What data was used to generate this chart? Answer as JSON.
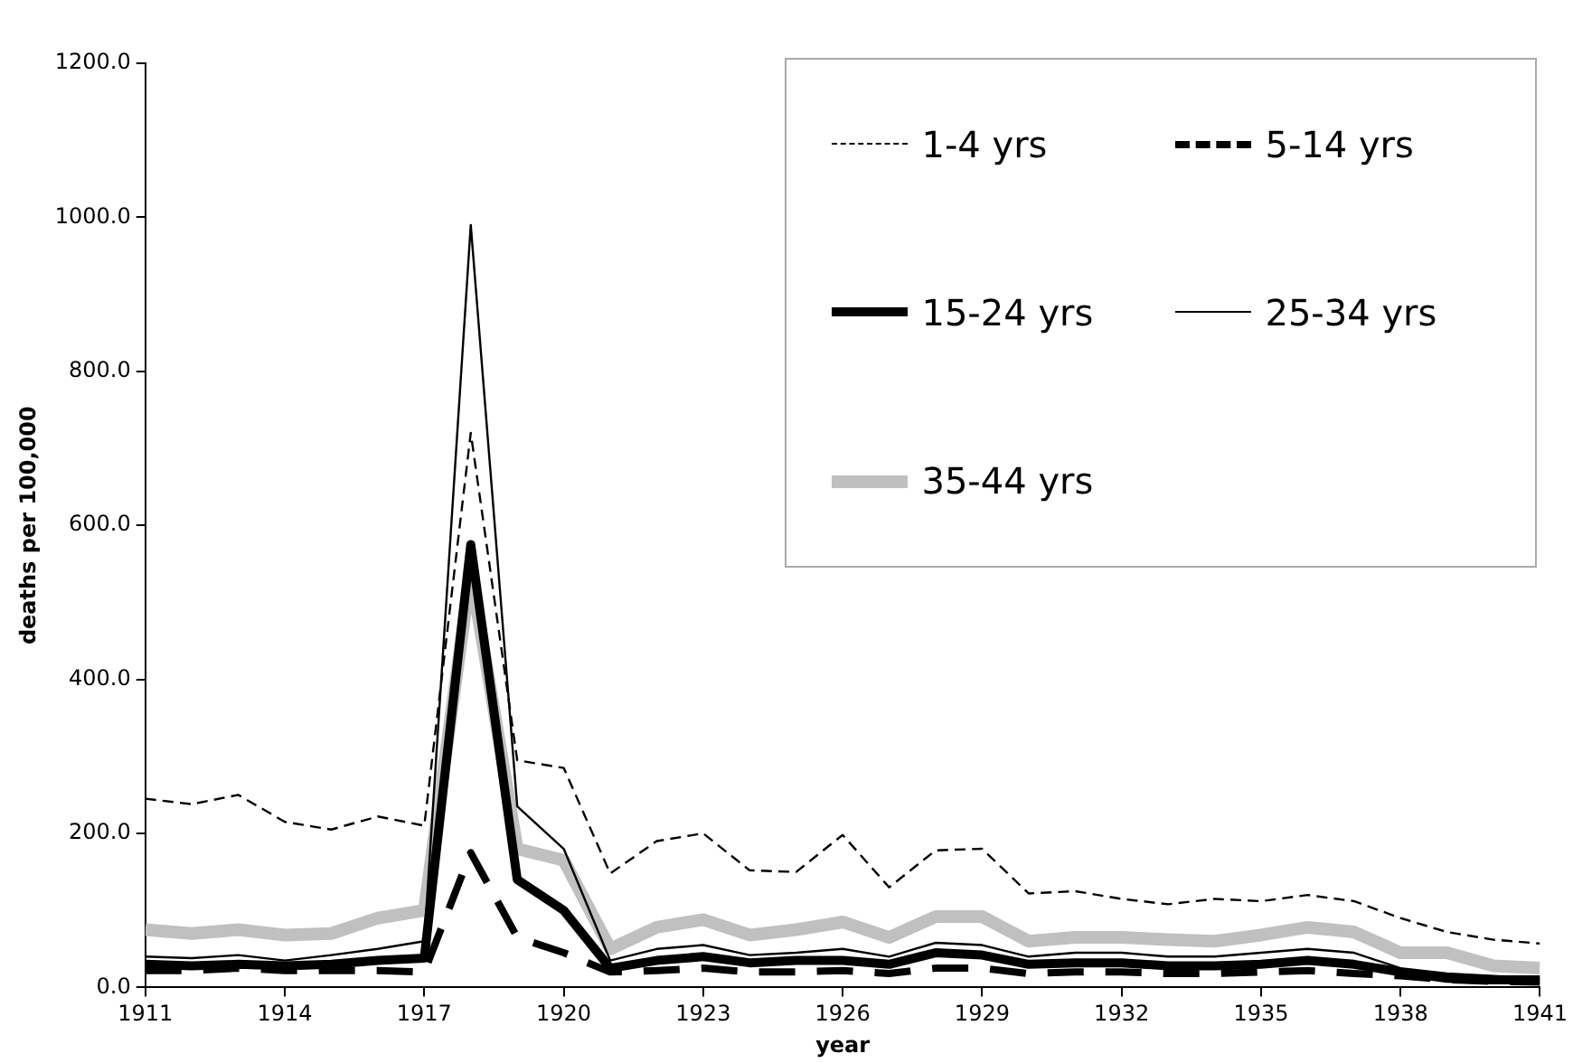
{
  "chart_data": {
    "type": "line",
    "xlabel": "year",
    "ylabel": "deaths per 100,000",
    "x": [
      1911,
      1912,
      1913,
      1914,
      1915,
      1916,
      1917,
      1918,
      1919,
      1920,
      1921,
      1922,
      1923,
      1924,
      1925,
      1926,
      1927,
      1928,
      1929,
      1930,
      1931,
      1932,
      1933,
      1934,
      1935,
      1936,
      1937,
      1938,
      1939,
      1940,
      1941
    ],
    "xlim": [
      1911,
      1941
    ],
    "xticks": [
      1911,
      1914,
      1917,
      1920,
      1923,
      1926,
      1929,
      1932,
      1935,
      1938,
      1941
    ],
    "ylim": [
      0,
      1200
    ],
    "yticks": [
      {
        "value": 0,
        "label": "0.0"
      },
      {
        "value": 200,
        "label": "200.0"
      },
      {
        "value": 400,
        "label": "400.0"
      },
      {
        "value": 600,
        "label": "600.0"
      },
      {
        "value": 800,
        "label": "800.0"
      },
      {
        "value": 1000,
        "label": "1000.0"
      },
      {
        "value": 1200,
        "label": "1200.0"
      }
    ],
    "grid": false,
    "legend": "top right",
    "marker": "none",
    "series": [
      {
        "name": "1-4 yrs",
        "color": "#000000",
        "line_style": "dashed",
        "values": [
          245,
          238,
          250,
          215,
          205,
          222,
          210,
          720,
          295,
          285,
          148,
          190,
          200,
          152,
          150,
          198,
          130,
          178,
          180,
          122,
          125,
          115,
          108,
          115,
          112,
          120,
          112,
          90,
          72,
          62,
          57
        ]
      },
      {
        "name": "5-14 yrs",
        "color": "#000000",
        "line_style": "dashed",
        "values": [
          22,
          22,
          25,
          22,
          22,
          22,
          20,
          175,
          65,
          45,
          20,
          22,
          25,
          20,
          20,
          22,
          18,
          25,
          25,
          18,
          20,
          20,
          18,
          18,
          20,
          22,
          18,
          15,
          10,
          8,
          7
        ]
      },
      {
        "name": "15-24 yrs",
        "color": "#000000",
        "line_style": "solid",
        "values": [
          30,
          28,
          30,
          28,
          30,
          35,
          38,
          575,
          140,
          100,
          25,
          35,
          40,
          32,
          35,
          35,
          30,
          45,
          42,
          30,
          32,
          32,
          28,
          28,
          30,
          35,
          30,
          20,
          12,
          10,
          10
        ]
      },
      {
        "name": "25-34 yrs",
        "color": "#000000",
        "line_style": "solid",
        "values": [
          40,
          38,
          42,
          35,
          42,
          50,
          60,
          990,
          235,
          180,
          35,
          50,
          55,
          42,
          45,
          50,
          40,
          58,
          55,
          40,
          45,
          45,
          40,
          40,
          45,
          50,
          45,
          25,
          18,
          15,
          12
        ]
      },
      {
        "name": "35-44 yrs",
        "color": "#c0c0c0",
        "line_style": "solid",
        "values": [
          75,
          70,
          75,
          68,
          70,
          90,
          100,
          540,
          180,
          165,
          50,
          78,
          88,
          68,
          75,
          85,
          65,
          92,
          92,
          60,
          65,
          65,
          62,
          60,
          68,
          78,
          72,
          45,
          45,
          28,
          25
        ]
      }
    ]
  }
}
